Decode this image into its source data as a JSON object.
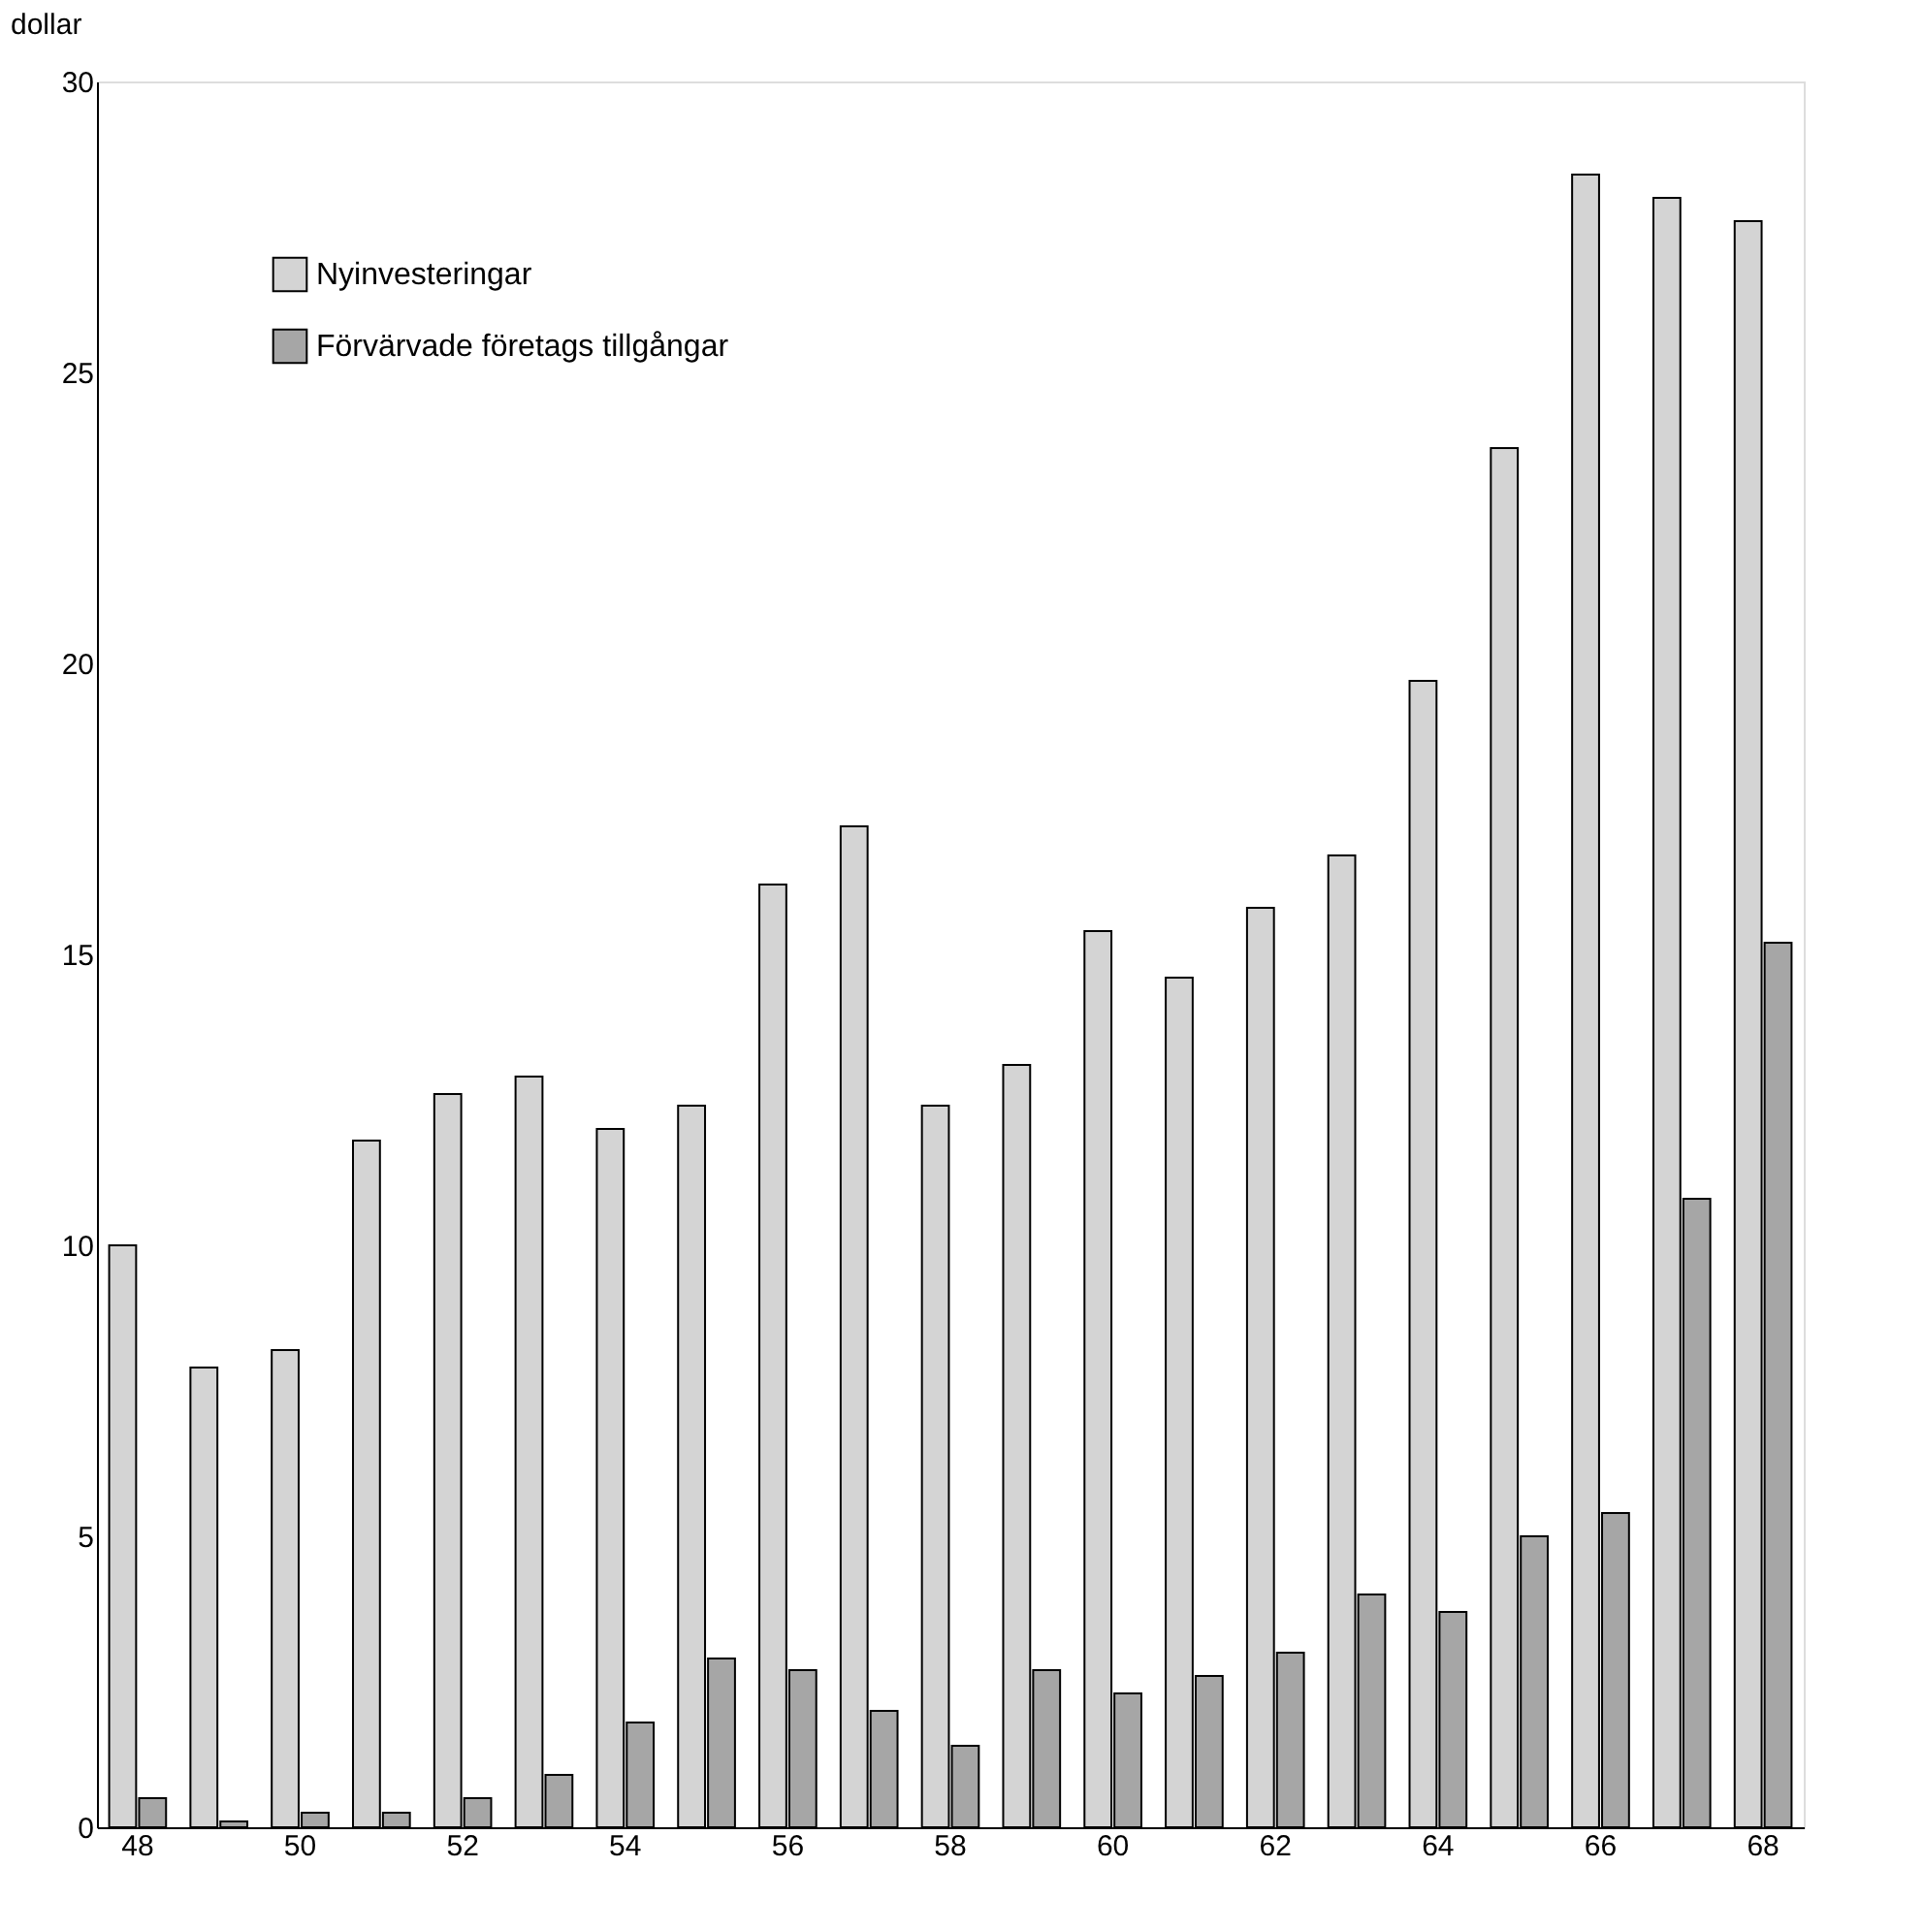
{
  "chart_data": {
    "type": "bar",
    "ylabel": "dollar",
    "categories": [
      "48",
      null,
      "50",
      null,
      "52",
      null,
      "54",
      null,
      "56",
      null,
      "58",
      null,
      "60",
      null,
      "62",
      null,
      "64",
      null,
      "66",
      null,
      "68"
    ],
    "series": [
      {
        "name": "Nyinvesteringar",
        "color": "#d4d4d4",
        "values": [
          10.0,
          7.9,
          8.2,
          11.8,
          12.6,
          12.9,
          12.0,
          12.4,
          16.2,
          17.2,
          12.4,
          13.1,
          15.4,
          14.6,
          15.8,
          16.7,
          19.7,
          23.7,
          28.4,
          28.0,
          27.6
        ]
      },
      {
        "name": "Förvärvade företags tillgångar",
        "color": "#a6a6a6",
        "values": [
          0.5,
          0.1,
          0.25,
          0.25,
          0.5,
          0.9,
          1.8,
          2.9,
          2.7,
          2.0,
          1.4,
          2.7,
          2.3,
          2.6,
          3.0,
          4.0,
          3.7,
          5.0,
          5.4,
          10.8,
          15.2
        ]
      }
    ],
    "ylim": [
      0,
      30
    ],
    "yticks": [
      0,
      5,
      10,
      15,
      20,
      25,
      30
    ],
    "grid": false,
    "legend": "top left"
  }
}
